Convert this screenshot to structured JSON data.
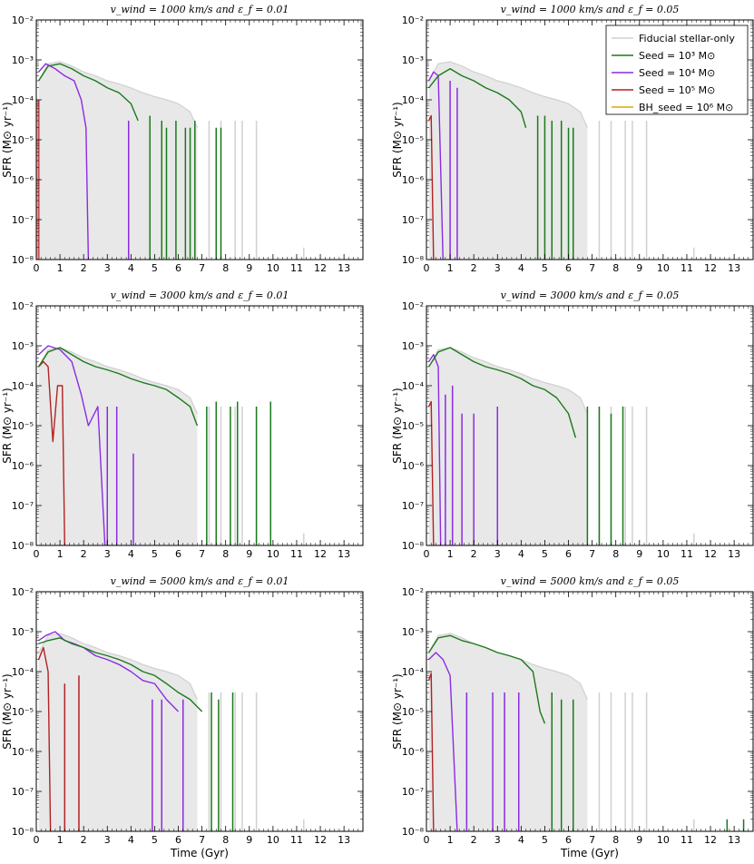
{
  "chart_data": {
    "type": "line",
    "xlabel": "Time (Gyr)",
    "ylabel": "SFR (M⊙ yr⁻¹)",
    "xlim": [
      0,
      13.8
    ],
    "ylim": [
      1e-08,
      0.01
    ],
    "yscale": "log",
    "xticks": [
      "0",
      "1",
      "2",
      "3",
      "4",
      "5",
      "6",
      "7",
      "8",
      "9",
      "10",
      "11",
      "12",
      "13"
    ],
    "yticks": [
      "10⁻⁸",
      "10⁻⁷",
      "10⁻⁶",
      "10⁻⁵",
      "10⁻⁴",
      "10⁻³",
      "10⁻²"
    ],
    "colors": {
      "fiducial": "#d0d0d0",
      "seed3": "#1a7a1a",
      "seed4": "#8a2be2",
      "seed5": "#b22222",
      "bh6": "#e0a800"
    },
    "legend": {
      "placement": "top-right",
      "entries": [
        {
          "name": "Fiducial stellar-only",
          "color": "#d0d0d0"
        },
        {
          "name": "Seed = 10³ M⊙",
          "color": "#1a7a1a"
        },
        {
          "name": "Seed = 10⁴ M⊙",
          "color": "#8a2be2"
        },
        {
          "name": "Seed = 10⁵ M⊙",
          "color": "#b22222"
        },
        {
          "name": "BH_seed = 10⁶ M⊙",
          "color": "#e0a800"
        }
      ]
    },
    "fiducial": {
      "name": "Fiducial stellar-only",
      "x": [
        0.1,
        0.5,
        1.0,
        1.5,
        2.0,
        2.5,
        3.0,
        3.5,
        4.0,
        4.5,
        5.0,
        5.5,
        6.0,
        6.5,
        6.8
      ],
      "y": [
        0.0003,
        0.0008,
        0.0009,
        0.0007,
        0.0005,
        0.0004,
        0.0003,
        0.00025,
        0.0002,
        0.00015,
        0.00012,
        0.0001,
        8e-05,
        5e-05,
        2e-05
      ],
      "spikes": [
        [
          7.3,
          3e-05
        ],
        [
          7.8,
          3e-05
        ],
        [
          8.4,
          3e-05
        ],
        [
          8.7,
          3e-05
        ],
        [
          9.3,
          3e-05
        ],
        [
          11.3,
          2e-08
        ]
      ]
    },
    "panels": [
      {
        "title": "v_wind = 1000 km/s and ε_f = 0.01",
        "series": [
          {
            "name": "Seed = 10³ M⊙",
            "color_key": "seed3",
            "x": [
              0.1,
              0.5,
              1.0,
              1.5,
              2.0,
              2.5,
              3.0,
              3.5,
              4.0,
              4.3
            ],
            "y": [
              0.0003,
              0.0007,
              0.0008,
              0.0006,
              0.0004,
              0.0003,
              0.0002,
              0.00015,
              8e-05,
              3e-05
            ],
            "spikes": [
              [
                4.8,
                4e-05
              ],
              [
                5.3,
                3e-05
              ],
              [
                5.5,
                2e-05
              ],
              [
                5.9,
                3e-05
              ],
              [
                6.3,
                2e-05
              ],
              [
                6.5,
                2e-05
              ],
              [
                6.7,
                3e-05
              ],
              [
                7.6,
                2e-05
              ],
              [
                7.8,
                2e-05
              ]
            ]
          },
          {
            "name": "Seed = 10⁴ M⊙",
            "color_key": "seed4",
            "x": [
              0.1,
              0.4,
              0.8,
              1.2,
              1.6,
              1.9,
              2.1,
              2.2
            ],
            "y": [
              0.0005,
              0.0008,
              0.0006,
              0.0004,
              0.0003,
              0.0001,
              2e-05,
              1e-08
            ],
            "spikes": [
              [
                3.9,
                3e-05
              ]
            ]
          },
          {
            "name": "Seed = 10⁵ M⊙",
            "color_key": "seed5",
            "x": [],
            "y": [],
            "spikes": [
              [
                0.1,
                0.0001
              ]
            ]
          }
        ]
      },
      {
        "title": "v_wind = 1000 km/s and ε_f = 0.05",
        "series": [
          {
            "name": "Seed = 10³ M⊙",
            "color_key": "seed3",
            "x": [
              0.1,
              0.5,
              1.0,
              1.5,
              2.0,
              2.5,
              3.0,
              3.5,
              4.0,
              4.2
            ],
            "y": [
              0.0002,
              0.0004,
              0.0006,
              0.0004,
              0.0003,
              0.0002,
              0.00015,
              0.0001,
              5e-05,
              2e-05
            ],
            "spikes": [
              [
                4.7,
                4e-05
              ],
              [
                5.0,
                4e-05
              ],
              [
                5.3,
                3e-05
              ],
              [
                5.7,
                3e-05
              ],
              [
                6.0,
                2e-05
              ],
              [
                6.2,
                2e-05
              ]
            ]
          },
          {
            "name": "Seed = 10⁴ M⊙",
            "color_key": "seed4",
            "x": [
              0.1,
              0.3,
              0.5,
              0.7
            ],
            "y": [
              0.0003,
              0.0005,
              0.0004,
              1e-08
            ],
            "spikes": [
              [
                1.0,
                0.0003
              ],
              [
                1.3,
                0.0002
              ]
            ]
          },
          {
            "name": "Seed = 10⁵ M⊙",
            "color_key": "seed5",
            "x": [
              0.1,
              0.2,
              0.3
            ],
            "y": [
              3e-05,
              4e-05,
              1e-08
            ],
            "spikes": []
          }
        ]
      },
      {
        "title": "v_wind = 3000 km/s and ε_f = 0.01",
        "series": [
          {
            "name": "Seed = 10³ M⊙",
            "color_key": "seed3",
            "x": [
              0.1,
              0.5,
              1.0,
              1.5,
              2.0,
              2.5,
              3.0,
              3.5,
              4.0,
              4.5,
              5.0,
              5.5,
              6.0,
              6.5,
              6.8
            ],
            "y": [
              0.0003,
              0.0007,
              0.0009,
              0.0006,
              0.0004,
              0.0003,
              0.00025,
              0.0002,
              0.00015,
              0.00012,
              0.0001,
              8e-05,
              5e-05,
              3e-05,
              1e-05
            ],
            "spikes": [
              [
                7.2,
                3e-05
              ],
              [
                7.6,
                4e-05
              ],
              [
                8.2,
                3e-05
              ],
              [
                8.5,
                4e-05
              ],
              [
                9.3,
                3e-05
              ],
              [
                9.9,
                4e-05
              ]
            ]
          },
          {
            "name": "Seed = 10⁴ M⊙",
            "color_key": "seed4",
            "x": [
              0.1,
              0.5,
              1.0,
              1.5,
              1.9,
              2.2,
              2.6,
              2.9
            ],
            "y": [
              0.0006,
              0.001,
              0.0008,
              0.0004,
              6e-05,
              1e-05,
              3e-05,
              1e-08
            ],
            "spikes": [
              [
                3.0,
                3e-05
              ],
              [
                3.4,
                3e-05
              ],
              [
                4.1,
                2e-06
              ]
            ]
          },
          {
            "name": "Seed = 10⁵ M⊙",
            "color_key": "seed5",
            "x": [
              0.1,
              0.3,
              0.5,
              0.7,
              0.9,
              1.1,
              1.2
            ],
            "y": [
              0.0003,
              0.0004,
              0.0003,
              4e-06,
              0.0001,
              0.0001,
              1e-08
            ],
            "spikes": []
          }
        ]
      },
      {
        "title": "v_wind = 3000 km/s and ε_f = 0.05",
        "series": [
          {
            "name": "Seed = 10³ M⊙",
            "color_key": "seed3",
            "x": [
              0.1,
              0.5,
              1.0,
              1.5,
              2.0,
              2.5,
              3.0,
              3.5,
              4.0,
              4.5,
              5.0,
              5.5,
              6.0,
              6.3
            ],
            "y": [
              0.0003,
              0.0007,
              0.0009,
              0.0006,
              0.0004,
              0.0003,
              0.00025,
              0.0002,
              0.00015,
              0.0001,
              8e-05,
              5e-05,
              2e-05,
              5e-06
            ],
            "spikes": [
              [
                6.8,
                3e-05
              ],
              [
                7.3,
                3e-05
              ],
              [
                7.8,
                2e-05
              ],
              [
                8.3,
                3e-05
              ]
            ]
          },
          {
            "name": "Seed = 10⁴ M⊙",
            "color_key": "seed4",
            "x": [
              0.1,
              0.3,
              0.5,
              0.6
            ],
            "y": [
              0.0004,
              0.0006,
              0.0003,
              1e-08
            ],
            "spikes": [
              [
                0.8,
                6e-05
              ],
              [
                1.1,
                0.0001
              ],
              [
                1.5,
                2e-05
              ],
              [
                2.0,
                2e-05
              ],
              [
                3.0,
                3e-05
              ]
            ]
          },
          {
            "name": "Seed = 10⁵ M⊙",
            "color_key": "seed5",
            "x": [
              0.1,
              0.2,
              0.3
            ],
            "y": [
              3e-05,
              4e-05,
              1e-08
            ],
            "spikes": []
          }
        ]
      },
      {
        "title": "v_wind = 5000 km/s and ε_f = 0.01",
        "series": [
          {
            "name": "Seed = 10³ M⊙",
            "color_key": "seed3",
            "x": [
              0.1,
              0.5,
              1.0,
              1.5,
              2.0,
              2.5,
              3.0,
              3.5,
              4.0,
              4.5,
              5.0,
              5.5,
              6.0,
              6.5,
              7.0
            ],
            "y": [
              0.0005,
              0.0006,
              0.0007,
              0.0005,
              0.0004,
              0.0003,
              0.00025,
              0.0002,
              0.00015,
              0.0001,
              8e-05,
              5e-05,
              3e-05,
              2e-05,
              1e-05
            ],
            "spikes": [
              [
                7.4,
                3e-05
              ],
              [
                7.7,
                2e-05
              ],
              [
                8.3,
                3e-05
              ]
            ]
          },
          {
            "name": "Seed = 10⁴ M⊙",
            "color_key": "seed4",
            "x": [
              0.1,
              0.4,
              0.8,
              1.2,
              1.6,
              2.0,
              2.5,
              3.0,
              3.5,
              4.0,
              4.5,
              5.0,
              5.5,
              6.0
            ],
            "y": [
              0.0006,
              0.0008,
              0.001,
              0.0006,
              0.0005,
              0.0004,
              0.00025,
              0.0002,
              0.00015,
              0.0001,
              6e-05,
              5e-05,
              2e-05,
              1e-05
            ],
            "spikes": [
              [
                4.9,
                2e-05
              ],
              [
                5.3,
                2e-05
              ],
              [
                6.2,
                2e-05
              ]
            ]
          },
          {
            "name": "Seed = 10⁵ M⊙",
            "color_key": "seed5",
            "x": [
              0.1,
              0.3,
              0.5,
              0.6
            ],
            "y": [
              0.0002,
              0.0004,
              0.0001,
              1e-08
            ],
            "spikes": [
              [
                1.2,
                5e-05
              ],
              [
                1.8,
                8e-05
              ]
            ]
          }
        ]
      },
      {
        "title": "v_wind = 5000 km/s and ε_f = 0.05",
        "series": [
          {
            "name": "Seed = 10³ M⊙",
            "color_key": "seed3",
            "x": [
              0.1,
              0.5,
              1.0,
              1.5,
              2.0,
              2.5,
              3.0,
              3.5,
              4.0,
              4.5,
              4.8,
              5.0
            ],
            "y": [
              0.0003,
              0.0007,
              0.0008,
              0.0006,
              0.0005,
              0.0004,
              0.0003,
              0.00025,
              0.0002,
              0.0001,
              1e-05,
              5e-06
            ],
            "spikes": [
              [
                5.3,
                3e-05
              ],
              [
                5.7,
                2e-05
              ],
              [
                6.2,
                2e-05
              ],
              [
                12.7,
                2e-08
              ],
              [
                13.4,
                2e-08
              ]
            ]
          },
          {
            "name": "Seed = 10⁴ M⊙",
            "color_key": "seed4",
            "x": [
              0.1,
              0.4,
              0.7,
              1.0,
              1.3
            ],
            "y": [
              0.0002,
              0.0003,
              0.0002,
              8e-05,
              1e-08
            ],
            "spikes": [
              [
                1.7,
                3e-05
              ],
              [
                2.8,
                3e-05
              ],
              [
                3.3,
                3e-05
              ],
              [
                3.9,
                3e-05
              ]
            ]
          },
          {
            "name": "Seed = 10⁵ M⊙",
            "color_key": "seed5",
            "x": [
              0.1,
              0.2,
              0.3
            ],
            "y": [
              6e-05,
              9e-05,
              1e-08
            ],
            "spikes": []
          }
        ]
      }
    ]
  }
}
